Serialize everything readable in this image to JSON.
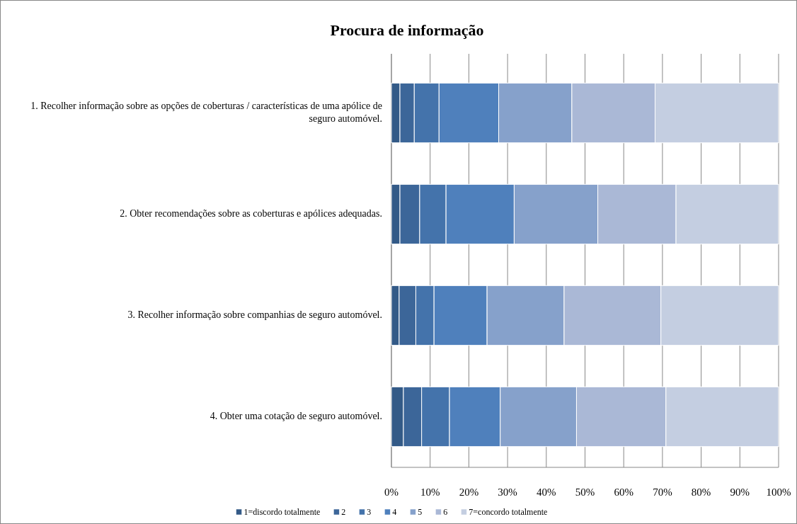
{
  "chart_data": {
    "type": "bar",
    "orientation": "horizontal",
    "stacked": true,
    "title": "Procura de informação",
    "categories": [
      "1. Recolher informação sobre as opções de coberturas / características de uma apólice de seguro automóvel.",
      "2. Obter recomendações sobre as coberturas e apólices adequadas.",
      "3. Recolher informação sobre companhias de seguro automóvel.",
      "4. Obter uma cotação de seguro automóvel."
    ],
    "series": [
      {
        "name": "1=discordo totalmente",
        "color": "#335a87",
        "values": [
          2.2,
          2.2,
          2.0,
          3.1
        ]
      },
      {
        "name": "2",
        "color": "#3c6699",
        "values": [
          3.7,
          5.1,
          4.3,
          4.7
        ]
      },
      {
        "name": "3",
        "color": "#4473ab",
        "values": [
          6.4,
          6.8,
          4.7,
          7.2
        ]
      },
      {
        "name": "4",
        "color": "#4f80bc",
        "values": [
          15.4,
          17.6,
          13.7,
          13.1
        ]
      },
      {
        "name": "5",
        "color": "#86a1cb",
        "values": [
          18.9,
          21.6,
          19.9,
          19.7
        ]
      },
      {
        "name": "6",
        "color": "#aab8d6",
        "values": [
          21.5,
          20.2,
          25.0,
          23.1
        ]
      },
      {
        "name": "7=concordo totalmente",
        "color": "#c4cee1",
        "values": [
          31.9,
          26.5,
          30.4,
          29.1
        ]
      }
    ],
    "xlim": [
      0,
      100
    ],
    "xticks": [
      {
        "value": 0,
        "label": "0%"
      },
      {
        "value": 10,
        "label": "10%"
      },
      {
        "value": 20,
        "label": "20%"
      },
      {
        "value": 30,
        "label": "30%"
      },
      {
        "value": 40,
        "label": "40%"
      },
      {
        "value": 50,
        "label": "50%"
      },
      {
        "value": 60,
        "label": "60%"
      },
      {
        "value": 70,
        "label": "70%"
      },
      {
        "value": 80,
        "label": "80%"
      },
      {
        "value": 90,
        "label": "90%"
      },
      {
        "value": 100,
        "label": "100%"
      }
    ],
    "grid": "x",
    "legend": "bottom"
  }
}
